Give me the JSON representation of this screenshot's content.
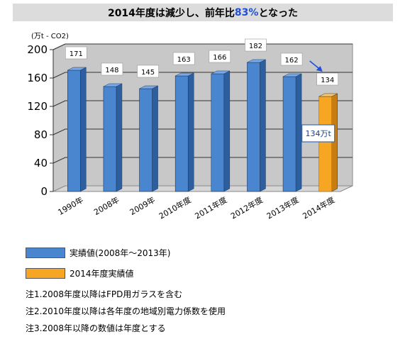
{
  "title": {
    "prefix": "2014年度は減少し、前年比",
    "highlight": "83%",
    "suffix": "となった"
  },
  "unit_label": "(万t - CO2)",
  "callout": "134万t",
  "legend": [
    {
      "label": "実績値(2008年〜2013年)",
      "color": "#4a86d0"
    },
    {
      "label": "2014年度実績値",
      "color": "#f6a623"
    }
  ],
  "notes": [
    "注1.2008年度以降はFPD用ガラスを含む",
    "注2.2010年度以降は各年度の地域別電力係数を使用",
    "注3.2008年以降の数値は年度とする"
  ],
  "chart_data": {
    "type": "bar",
    "title": "2014年度は減少し、前年比83%となった",
    "ylabel": "(万t - CO2)",
    "ylim": [
      0,
      200
    ],
    "yticks": [
      "0",
      "40",
      "80",
      "120",
      "160",
      "200"
    ],
    "categories": [
      "1990年",
      "2008年",
      "2009年",
      "2010年度",
      "2011年度",
      "2012年度",
      "2013年度",
      "2014年度"
    ],
    "values": [
      171,
      148,
      145,
      163,
      166,
      182,
      162,
      134
    ],
    "value_labels": [
      "171",
      "148",
      "145",
      "163",
      "166",
      "182",
      "162",
      "134"
    ],
    "bar_colors": [
      "#4a86d0",
      "#4a86d0",
      "#4a86d0",
      "#4a86d0",
      "#4a86d0",
      "#4a86d0",
      "#4a86d0",
      "#f6a623"
    ],
    "grid": true
  }
}
